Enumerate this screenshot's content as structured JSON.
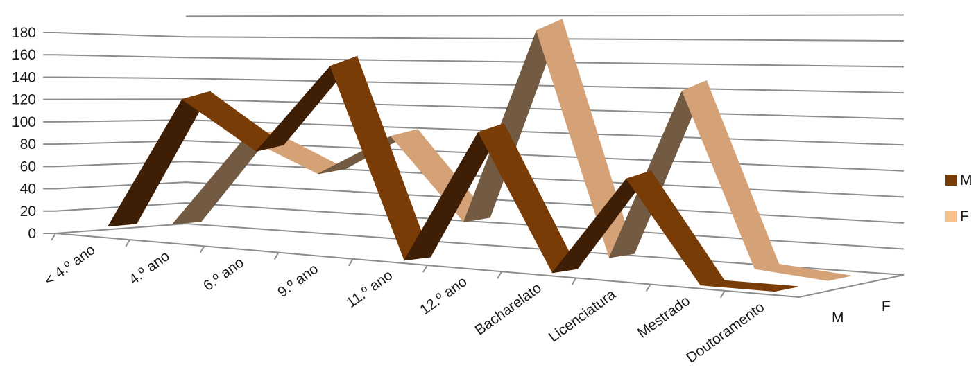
{
  "chart_data": {
    "type": "line",
    "variant": "3d-ribbon",
    "title": "",
    "xlabel": "",
    "ylabel": "",
    "categories": [
      "< 4.º ano",
      "4.º ano",
      "6.º ano",
      "9.º ano",
      "11.º ano",
      "12.º ano",
      "Bacharelato",
      "Licenciatura",
      "Mestrado",
      "Doutoramento"
    ],
    "series": [
      {
        "name": "M",
        "values": [
          8,
          125,
          85,
          165,
          0,
          118,
          0,
          88,
          0,
          0
        ],
        "color": "#7a3c06",
        "side_color": "#3e1f05"
      },
      {
        "name": "F",
        "values": [
          5,
          80,
          55,
          90,
          25,
          185,
          5,
          145,
          5,
          0
        ],
        "color": "#d4a276",
        "side_color": "#735a43"
      }
    ],
    "depth_labels": [
      "M",
      "F"
    ],
    "y_ticks": [
      0,
      20,
      40,
      60,
      80,
      100,
      120,
      140,
      160,
      180
    ],
    "ylim": [
      0,
      180
    ],
    "grid": true,
    "legend": {
      "position": "right",
      "entries": [
        "M",
        "F"
      ]
    }
  }
}
